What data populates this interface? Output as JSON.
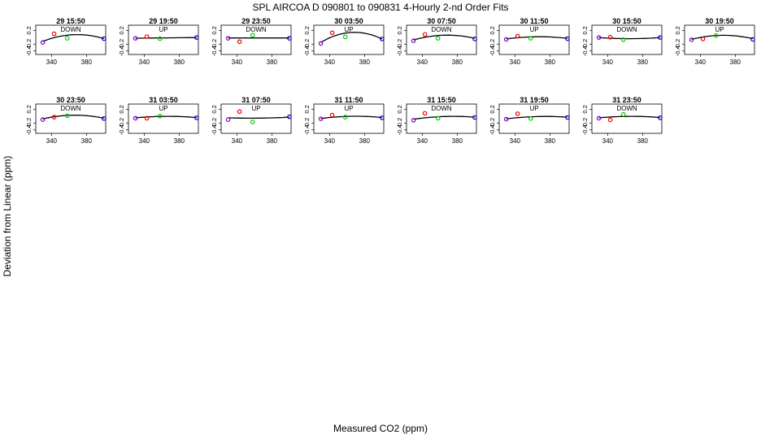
{
  "figure": {
    "title": "SPL   AIRCOA D   090801 to 090831   4-Hourly 2-nd Order Fits",
    "xlabel": "Measured CO2 (ppm)",
    "ylabel": "Deviation from Linear (ppm)"
  },
  "chart_data": {
    "type": "scatter",
    "xlim": [
      322,
      402
    ],
    "ylim": [
      -0.5,
      0.35
    ],
    "x_ticks": [
      "340",
      "380"
    ],
    "y_ticks": [
      "0.2",
      "-0.2",
      "-0.4"
    ],
    "grid": false,
    "legend": "none",
    "point_colors": [
      "#8800cc",
      "#ee0000",
      "#00cc00",
      "#0000cc"
    ],
    "fit_color": "#000000",
    "x": [
      330,
      343,
      358,
      400
    ],
    "panels": [
      {
        "title": "29 15:50",
        "direction": "DOWN",
        "values": [
          -0.15,
          0.1,
          -0.03,
          -0.04
        ],
        "fit": [
          -0.12,
          0.02,
          0.06,
          -0.04
        ]
      },
      {
        "title": "29 19:50",
        "direction": "UP",
        "values": [
          -0.03,
          0.02,
          -0.04,
          -0.01
        ],
        "fit": [
          -0.03,
          -0.02,
          -0.02,
          -0.01
        ]
      },
      {
        "title": "29 23:50",
        "direction": "DOWN",
        "values": [
          -0.03,
          -0.13,
          0.06,
          -0.03
        ],
        "fit": [
          -0.02,
          -0.02,
          -0.02,
          -0.02
        ]
      },
      {
        "title": "30 03:50",
        "direction": "UP",
        "values": [
          -0.18,
          0.13,
          0.01,
          -0.05
        ],
        "fit": [
          -0.15,
          0.05,
          0.12,
          -0.05
        ]
      },
      {
        "title": "30 07:50",
        "direction": "DOWN",
        "values": [
          -0.1,
          0.08,
          -0.03,
          -0.05
        ],
        "fit": [
          -0.08,
          0.02,
          0.05,
          -0.03
        ]
      },
      {
        "title": "30 11:50",
        "direction": "UP",
        "values": [
          -0.06,
          0.03,
          -0.03,
          -0.04
        ],
        "fit": [
          -0.05,
          0.0,
          0.01,
          -0.03
        ]
      },
      {
        "title": "30 15:50",
        "direction": "DOWN",
        "values": [
          -0.01,
          0.0,
          -0.07,
          -0.01
        ],
        "fit": [
          -0.01,
          -0.03,
          -0.04,
          -0.01
        ]
      },
      {
        "title": "30 19:50",
        "direction": "UP",
        "values": [
          -0.07,
          -0.05,
          0.05,
          -0.06
        ],
        "fit": [
          -0.06,
          0.0,
          0.05,
          -0.04
        ]
      },
      {
        "title": "30 23:50",
        "direction": "DOWN",
        "values": [
          -0.1,
          -0.03,
          0.01,
          -0.07
        ],
        "fit": [
          -0.08,
          -0.01,
          0.02,
          -0.06
        ]
      },
      {
        "title": "31 03:50",
        "direction": "UP",
        "values": [
          -0.06,
          -0.06,
          0.0,
          -0.05
        ],
        "fit": [
          -0.05,
          -0.02,
          -0.01,
          -0.04
        ]
      },
      {
        "title": "31 07:50",
        "direction": "UP",
        "values": [
          -0.1,
          0.13,
          -0.17,
          -0.02
        ],
        "fit": [
          -0.05,
          -0.05,
          -0.06,
          -0.03
        ]
      },
      {
        "title": "31 11:50",
        "direction": "UP",
        "values": [
          -0.08,
          0.03,
          -0.03,
          -0.05
        ],
        "fit": [
          -0.07,
          -0.03,
          -0.01,
          -0.04
        ]
      },
      {
        "title": "31 15:50",
        "direction": "DOWN",
        "values": [
          -0.12,
          0.08,
          -0.06,
          -0.04
        ],
        "fit": [
          -0.09,
          -0.03,
          -0.02,
          -0.03
        ]
      },
      {
        "title": "31 19:50",
        "direction": "UP",
        "values": [
          -0.09,
          0.07,
          -0.07,
          -0.04
        ],
        "fit": [
          -0.08,
          -0.03,
          -0.02,
          -0.03
        ]
      },
      {
        "title": "31 23:50",
        "direction": "DOWN",
        "values": [
          -0.06,
          -0.11,
          0.05,
          -0.05
        ],
        "fit": [
          -0.05,
          -0.02,
          -0.01,
          -0.04
        ]
      }
    ]
  }
}
